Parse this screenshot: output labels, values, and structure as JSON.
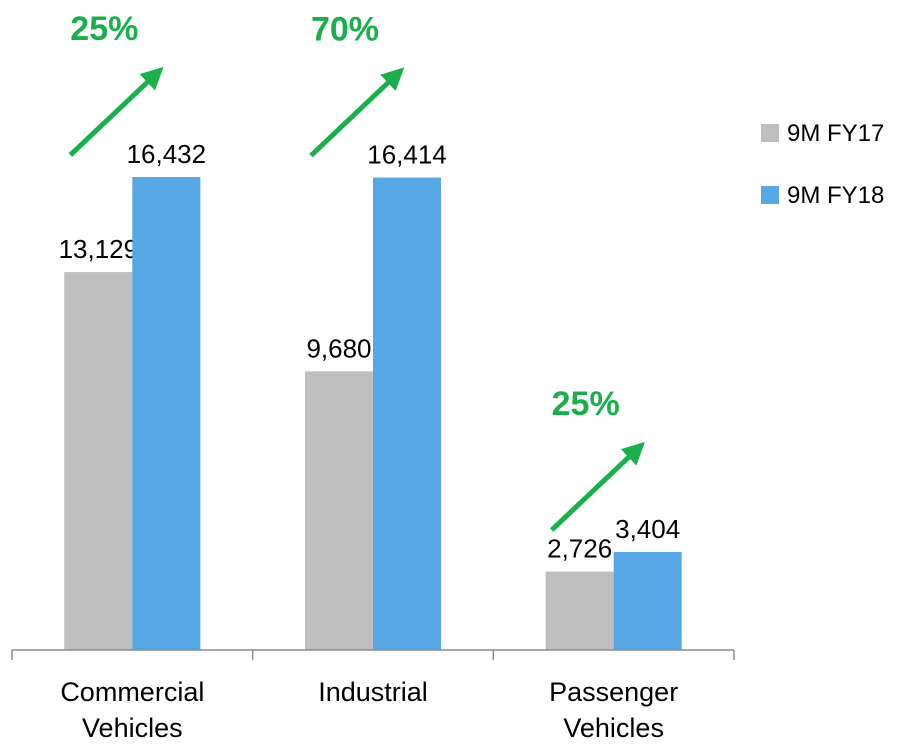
{
  "chart_data": {
    "type": "bar",
    "title": "",
    "xlabel": "",
    "ylabel": "",
    "categories": [
      [
        "Commercial",
        "Vehicles"
      ],
      [
        "Industrial"
      ],
      [
        "Passenger",
        "Vehicles"
      ]
    ],
    "series": [
      {
        "name": "9M FY17",
        "color": "#bfbfbf",
        "values": [
          13129,
          9680,
          2726
        ],
        "labels": [
          "13,129",
          "9,680",
          "2,726"
        ]
      },
      {
        "name": "9M FY18",
        "color": "#55a8e3",
        "values": [
          16432,
          16414,
          3404
        ],
        "labels": [
          "16,432",
          "16,414",
          "3,404"
        ]
      }
    ],
    "ylim": [
      0,
      19000
    ],
    "grid": false,
    "legend_position": "right",
    "annotations": [
      {
        "category_index": 0,
        "text": "25%",
        "icon": "up-right-arrow-icon",
        "color": "#1aaf4b"
      },
      {
        "category_index": 1,
        "text": "70%",
        "icon": "up-right-arrow-icon",
        "color": "#1aaf4b"
      },
      {
        "category_index": 2,
        "text": "25%",
        "icon": "up-right-arrow-icon",
        "color": "#1aaf4b"
      }
    ]
  }
}
